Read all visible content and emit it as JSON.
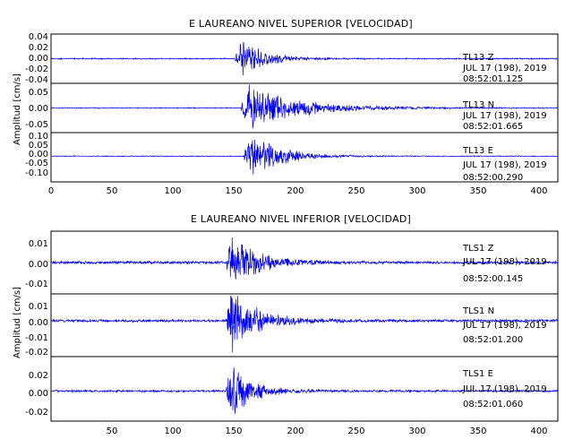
{
  "chart_data": [
    {
      "type": "line",
      "title": "E LAUREANO NIVEL SUPERIOR [VELOCIDAD]",
      "ylabel": "Amplitud [cm/s]",
      "xlim": [
        0,
        415
      ],
      "x_ticks": [
        "0",
        "50",
        "100",
        "150",
        "200",
        "250",
        "300",
        "350",
        "400"
      ],
      "line_color": "#0000ee",
      "grid": false,
      "series": [
        {
          "name": "TL13 Z",
          "component": "Z",
          "date": "JUL 17 (198), 2019",
          "time": "08:52:01.125",
          "ylim": [
            -0.045,
            0.045
          ],
          "y_ticks": [
            "0.04",
            "0.02",
            "0.00",
            "-0.02",
            "-0.04"
          ],
          "envelope": {
            "onset": 150,
            "peak_at": 157,
            "peak": 0.038,
            "decay": 18,
            "noise": 0.0012,
            "freq": 9
          }
        },
        {
          "name": "TL13 N",
          "component": "N",
          "date": "JUL 17 (198), 2019",
          "time": "08:52:01.665",
          "ylim": [
            -0.075,
            0.075
          ],
          "y_ticks": [
            "0.05",
            "0.00",
            "-0.05"
          ],
          "envelope": {
            "onset": 155,
            "peak_at": 162,
            "peak": 0.072,
            "decay": 40,
            "noise": 0.0015,
            "freq": 8
          }
        },
        {
          "name": "TL13 E",
          "component": "E",
          "date": "JUL 17 (198), 2019",
          "time": "08:52:00.290",
          "ylim": [
            -0.12,
            0.11
          ],
          "y_ticks": [
            "0.10",
            "0.05",
            "0.00",
            "-0.05",
            "-0.10"
          ],
          "envelope": {
            "onset": 157,
            "peak_at": 163,
            "peak": 0.115,
            "decay": 24,
            "noise": 0.002,
            "freq": 9
          }
        }
      ]
    },
    {
      "type": "line",
      "title": "E LAUREANO NIVEL INFERIOR [VELOCIDAD]",
      "ylabel": "Amplitud [cm/s]",
      "xlim": [
        0,
        415
      ],
      "x_ticks": [
        "50",
        "100",
        "150",
        "200",
        "250",
        "300",
        "350",
        "400"
      ],
      "line_color": "#0000ee",
      "grid": false,
      "series": [
        {
          "name": "TLS1 Z",
          "component": "Z",
          "date": "JUL 17 (198), 2019",
          "time": "08:52:00.145",
          "ylim": [
            -0.018,
            0.018
          ],
          "y_ticks": [
            "0.01",
            "0.00",
            "-0.01"
          ],
          "envelope": {
            "onset": 143,
            "peak_at": 148,
            "peak": 0.016,
            "decay": 22,
            "noise": 0.0008,
            "freq": 10
          }
        },
        {
          "name": "TLS1 N",
          "component": "N",
          "date": "JUL 17 (198), 2019",
          "time": "08:52:01.200",
          "ylim": [
            -0.024,
            0.018
          ],
          "y_ticks": [
            "0.01",
            "0.00",
            "-0.01",
            "-0.02"
          ],
          "envelope": {
            "onset": 143,
            "peak_at": 148,
            "peak": 0.021,
            "decay": 22,
            "noise": 0.0009,
            "freq": 10
          }
        },
        {
          "name": "TLS1 E",
          "component": "E",
          "date": "JUL 17 (198), 2019",
          "time": "08:52:01.060",
          "ylim": [
            -0.028,
            0.032
          ],
          "y_ticks": [
            "0.02",
            "0.00",
            "-0.02"
          ],
          "envelope": {
            "onset": 143,
            "peak_at": 147,
            "peak": 0.026,
            "decay": 18,
            "noise": 0.001,
            "freq": 10
          }
        }
      ]
    }
  ]
}
